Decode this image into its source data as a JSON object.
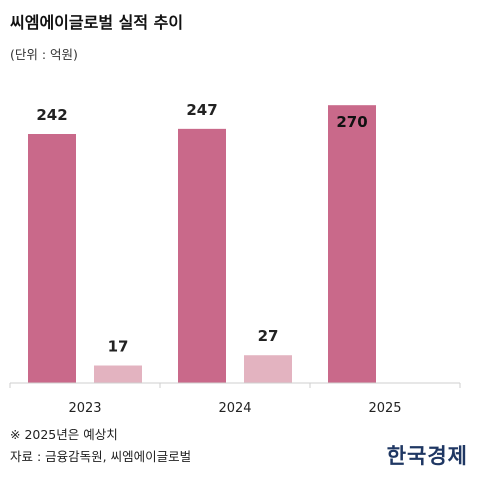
{
  "header": {
    "title": "씨엠에이글로벌 실적 추이",
    "unit": "(단위 : 억원)"
  },
  "chart_data": {
    "type": "bar",
    "categories": [
      "2023",
      "2024",
      "2025"
    ],
    "series": [
      {
        "values": [
          242,
          247,
          270
        ],
        "color": "#c9698a"
      },
      {
        "values": [
          17,
          27,
          null
        ],
        "color": "#e3b3c0"
      }
    ],
    "ylim": [
      0,
      280
    ],
    "grid": false,
    "legend": "none"
  },
  "footer": {
    "note": "※ 2025년은 예상치",
    "source": "자료 : 금융감독원, 씨엠에이글로벌",
    "brand": "한국경제"
  }
}
